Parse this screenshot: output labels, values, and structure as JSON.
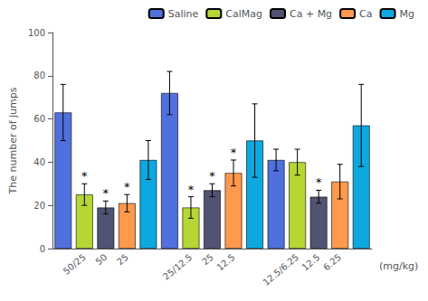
{
  "chart_data": {
    "type": "bar",
    "ylabel": "The number of jumps",
    "xlabel": "(mg/kg)",
    "categories": [
      null,
      "50/25",
      "50",
      "25",
      null,
      null,
      "25/12.5",
      "25",
      "12.5",
      null,
      null,
      "12.5/6.25",
      "12.5",
      "6.25",
      null
    ],
    "series": [
      {
        "name": "Saline",
        "values": [
          63,
          null,
          null,
          null,
          null,
          72,
          null,
          null,
          null,
          null,
          41,
          null,
          null,
          null,
          null
        ],
        "errors": [
          13,
          null,
          null,
          null,
          null,
          10,
          null,
          null,
          null,
          null,
          5,
          null,
          null,
          null,
          null
        ]
      },
      {
        "name": "CalMag",
        "values": [
          null,
          25,
          null,
          null,
          null,
          null,
          19,
          null,
          null,
          null,
          null,
          40,
          null,
          null,
          null
        ],
        "errors": [
          null,
          5,
          null,
          null,
          null,
          null,
          5,
          null,
          null,
          null,
          null,
          6,
          null,
          null,
          null
        ],
        "annotations": [
          null,
          "*",
          null,
          null,
          null,
          null,
          "*",
          null,
          null,
          null,
          null,
          null,
          null,
          null,
          null
        ]
      },
      {
        "name": "Ca + Mg",
        "values": [
          null,
          null,
          19,
          null,
          null,
          null,
          null,
          27,
          null,
          null,
          null,
          null,
          24,
          null,
          null
        ],
        "errors": [
          null,
          null,
          3,
          null,
          null,
          null,
          null,
          3,
          null,
          null,
          null,
          null,
          3,
          null,
          null
        ],
        "annotations": [
          null,
          null,
          "*",
          null,
          null,
          null,
          null,
          "*",
          null,
          null,
          null,
          null,
          "*",
          null,
          null
        ]
      },
      {
        "name": "Ca",
        "values": [
          null,
          null,
          null,
          21,
          null,
          null,
          null,
          null,
          35,
          null,
          null,
          null,
          null,
          31,
          null
        ],
        "errors": [
          null,
          null,
          null,
          4,
          null,
          null,
          null,
          null,
          6,
          null,
          null,
          null,
          null,
          8,
          null
        ],
        "annotations": [
          null,
          null,
          null,
          "*",
          null,
          null,
          null,
          null,
          "*",
          null,
          null,
          null,
          null,
          null,
          null
        ]
      },
      {
        "name": "Mg",
        "values": [
          null,
          null,
          null,
          null,
          41,
          null,
          null,
          null,
          null,
          50,
          null,
          null,
          null,
          null,
          57
        ],
        "errors": [
          null,
          null,
          null,
          null,
          9,
          null,
          null,
          null,
          null,
          17,
          null,
          null,
          null,
          null,
          19
        ]
      }
    ],
    "ylim": [
      0,
      100
    ],
    "yticks": [
      0,
      20,
      40,
      60,
      80,
      100
    ],
    "grid": false,
    "legend": "upper right"
  }
}
